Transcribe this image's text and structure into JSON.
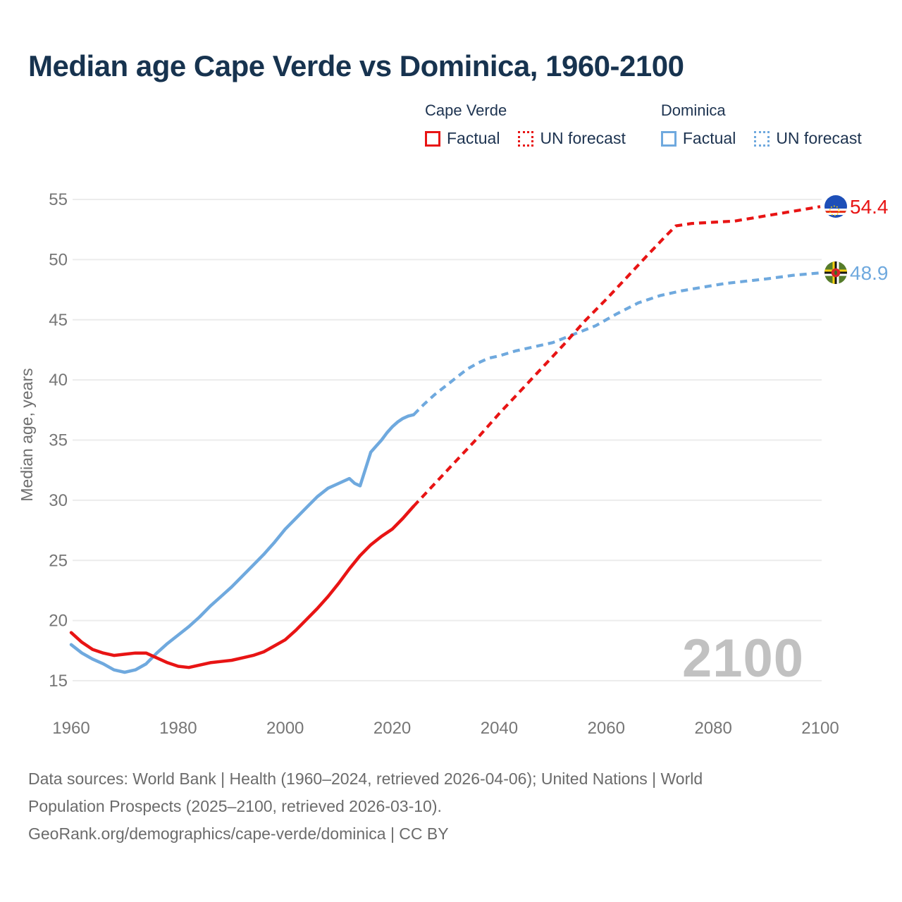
{
  "title": "Median age Cape Verde vs Dominica, 1960-2100",
  "legend": {
    "groups": [
      {
        "name": "Cape Verde",
        "color": "#e81414",
        "items": [
          {
            "label": "Factual",
            "style": "solid"
          },
          {
            "label": "UN forecast",
            "style": "dotted"
          }
        ]
      },
      {
        "name": "Dominica",
        "color": "#6fa9de",
        "items": [
          {
            "label": "Factual",
            "style": "solid"
          },
          {
            "label": "UN forecast",
            "style": "dotted"
          }
        ]
      }
    ]
  },
  "watermark": "2100",
  "footer": {
    "line1": "Data sources: World Bank | Health (1960–2024, retrieved 2026-04-06); United Nations | World",
    "line2": "Population Prospects (2025–2100, retrieved 2026-03-10).",
    "line3": "GeoRank.org/demographics/cape-verde/dominica | CC BY"
  },
  "chart_data": {
    "type": "line",
    "title": "Median age Cape Verde vs Dominica, 1960-2100",
    "xlabel": "",
    "ylabel": "Median age, years",
    "xticks": [
      1960,
      1980,
      2000,
      2020,
      2040,
      2060,
      2080,
      2100
    ],
    "yticks": [
      15,
      20,
      25,
      30,
      35,
      40,
      45,
      50,
      55
    ],
    "xlim": [
      1960,
      2100
    ],
    "ylim": [
      15,
      55
    ],
    "grid": true,
    "grid_color": "#ececec",
    "legend_position": "top-right",
    "series": [
      {
        "name": "Dominica — Factual",
        "color": "#6fa9de",
        "dash": "solid",
        "points": [
          [
            1960,
            18.0
          ],
          [
            1962,
            17.3
          ],
          [
            1964,
            16.8
          ],
          [
            1966,
            16.4
          ],
          [
            1968,
            15.9
          ],
          [
            1970,
            15.7
          ],
          [
            1972,
            15.9
          ],
          [
            1974,
            16.4
          ],
          [
            1976,
            17.3
          ],
          [
            1978,
            18.1
          ],
          [
            1980,
            18.8
          ],
          [
            1982,
            19.5
          ],
          [
            1984,
            20.3
          ],
          [
            1986,
            21.2
          ],
          [
            1988,
            22.0
          ],
          [
            1990,
            22.8
          ],
          [
            1992,
            23.7
          ],
          [
            1994,
            24.6
          ],
          [
            1996,
            25.5
          ],
          [
            1998,
            26.5
          ],
          [
            2000,
            27.6
          ],
          [
            2002,
            28.5
          ],
          [
            2004,
            29.4
          ],
          [
            2006,
            30.3
          ],
          [
            2008,
            31.0
          ],
          [
            2010,
            31.4
          ],
          [
            2012,
            31.8
          ],
          [
            2013,
            31.4
          ],
          [
            2014,
            31.2
          ],
          [
            2015,
            32.6
          ],
          [
            2016,
            34.0
          ],
          [
            2017,
            34.5
          ],
          [
            2018,
            35.0
          ],
          [
            2019,
            35.6
          ],
          [
            2020,
            36.1
          ],
          [
            2021,
            36.5
          ],
          [
            2022,
            36.8
          ],
          [
            2023,
            37.0
          ],
          [
            2024,
            37.1
          ]
        ]
      },
      {
        "name": "Dominica — UN forecast",
        "color": "#6fa9de",
        "dash": "dashed",
        "points": [
          [
            2024,
            37.1
          ],
          [
            2026,
            38.0
          ],
          [
            2028,
            38.8
          ],
          [
            2030,
            39.5
          ],
          [
            2032,
            40.2
          ],
          [
            2034,
            40.9
          ],
          [
            2036,
            41.4
          ],
          [
            2038,
            41.8
          ],
          [
            2040,
            42.0
          ],
          [
            2043,
            42.4
          ],
          [
            2046,
            42.7
          ],
          [
            2050,
            43.1
          ],
          [
            2054,
            43.8
          ],
          [
            2058,
            44.5
          ],
          [
            2062,
            45.5
          ],
          [
            2066,
            46.4
          ],
          [
            2070,
            47.0
          ],
          [
            2074,
            47.4
          ],
          [
            2078,
            47.7
          ],
          [
            2082,
            48.0
          ],
          [
            2086,
            48.2
          ],
          [
            2090,
            48.4
          ],
          [
            2095,
            48.7
          ],
          [
            2100,
            48.9
          ]
        ]
      },
      {
        "name": "Cape Verde — Factual",
        "color": "#e81414",
        "dash": "solid",
        "points": [
          [
            1960,
            19.0
          ],
          [
            1962,
            18.2
          ],
          [
            1964,
            17.6
          ],
          [
            1966,
            17.3
          ],
          [
            1968,
            17.1
          ],
          [
            1970,
            17.2
          ],
          [
            1972,
            17.3
          ],
          [
            1974,
            17.3
          ],
          [
            1976,
            16.9
          ],
          [
            1978,
            16.5
          ],
          [
            1980,
            16.2
          ],
          [
            1982,
            16.1
          ],
          [
            1984,
            16.3
          ],
          [
            1986,
            16.5
          ],
          [
            1988,
            16.6
          ],
          [
            1990,
            16.7
          ],
          [
            1992,
            16.9
          ],
          [
            1994,
            17.1
          ],
          [
            1996,
            17.4
          ],
          [
            1998,
            17.9
          ],
          [
            2000,
            18.4
          ],
          [
            2002,
            19.2
          ],
          [
            2004,
            20.1
          ],
          [
            2006,
            21.0
          ],
          [
            2008,
            22.0
          ],
          [
            2010,
            23.1
          ],
          [
            2012,
            24.3
          ],
          [
            2014,
            25.4
          ],
          [
            2016,
            26.3
          ],
          [
            2018,
            27.0
          ],
          [
            2020,
            27.6
          ],
          [
            2022,
            28.5
          ],
          [
            2024,
            29.5
          ]
        ]
      },
      {
        "name": "Cape Verde — UN forecast",
        "color": "#e81414",
        "dash": "dashed",
        "points": [
          [
            2024,
            29.5
          ],
          [
            2028,
            31.4
          ],
          [
            2032,
            33.3
          ],
          [
            2036,
            35.2
          ],
          [
            2040,
            37.2
          ],
          [
            2044,
            39.1
          ],
          [
            2048,
            41.0
          ],
          [
            2052,
            42.9
          ],
          [
            2056,
            44.9
          ],
          [
            2060,
            46.7
          ],
          [
            2064,
            48.6
          ],
          [
            2068,
            50.5
          ],
          [
            2071,
            51.9
          ],
          [
            2073,
            52.8
          ],
          [
            2076,
            53.0
          ],
          [
            2080,
            53.1
          ],
          [
            2084,
            53.2
          ],
          [
            2088,
            53.5
          ],
          [
            2092,
            53.8
          ],
          [
            2096,
            54.1
          ],
          [
            2100,
            54.4
          ]
        ]
      }
    ],
    "end_labels": [
      {
        "text": "54.4",
        "value": 54.4,
        "year": 2100,
        "color": "#e81414",
        "flag": "cape-verde"
      },
      {
        "text": "48.9",
        "value": 48.9,
        "year": 2100,
        "color": "#6fa9de",
        "flag": "dominica"
      }
    ]
  }
}
